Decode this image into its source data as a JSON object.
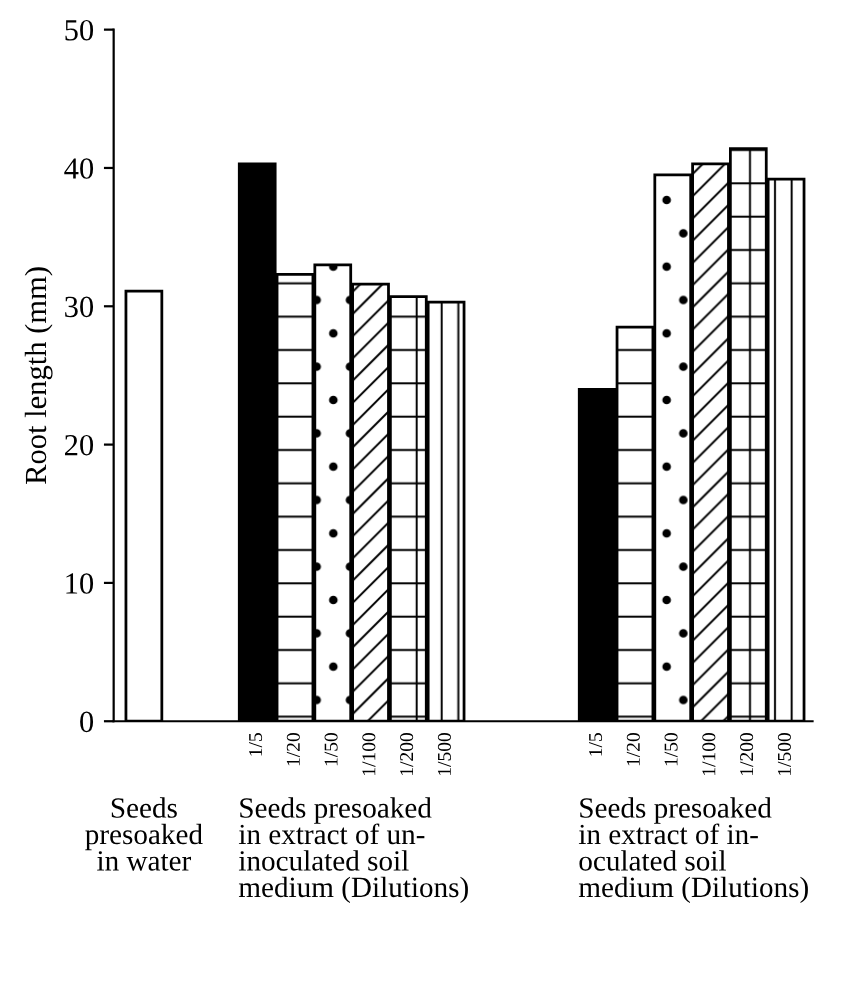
{
  "chart_data": {
    "type": "bar",
    "ylabel": "Root length (mm)",
    "categories": [
      null,
      null,
      null,
      "1/5",
      "1/20",
      "1/50",
      "1/100",
      "1/200",
      "1/500",
      null,
      null,
      null,
      "1/5",
      "1/20",
      "1/50",
      "1/100",
      "1/200",
      "1/500"
    ],
    "values": [
      31.1,
      null,
      null,
      40.3,
      32.3,
      33.0,
      31.6,
      30.7,
      30.3,
      null,
      null,
      null,
      24.0,
      28.5,
      39.5,
      40.3,
      41.4,
      39.2
    ],
    "colors": [
      "#ffffff",
      null,
      null,
      "#000000",
      "#ffffff",
      "#ffffff",
      "#ffffff",
      "#ffffff",
      "#ffffff",
      null,
      null,
      null,
      "#000000",
      "#ffffff",
      "#ffffff",
      "#ffffff",
      "#ffffff",
      "#ffffff"
    ],
    "ylim": [
      0,
      50
    ],
    "yticks": [
      0,
      10,
      20,
      30,
      40,
      50
    ],
    "grid": false,
    "legend": false,
    "annotations": [
      "Seeds\npresoaked\nin water",
      "Seeds presoaked\nin extract of un-\ninoculated soil\nmedium (Dilutions)",
      "Seeds presoaked\nin extract of in-\noculated soil\nmedium (Dilutions)"
    ]
  }
}
